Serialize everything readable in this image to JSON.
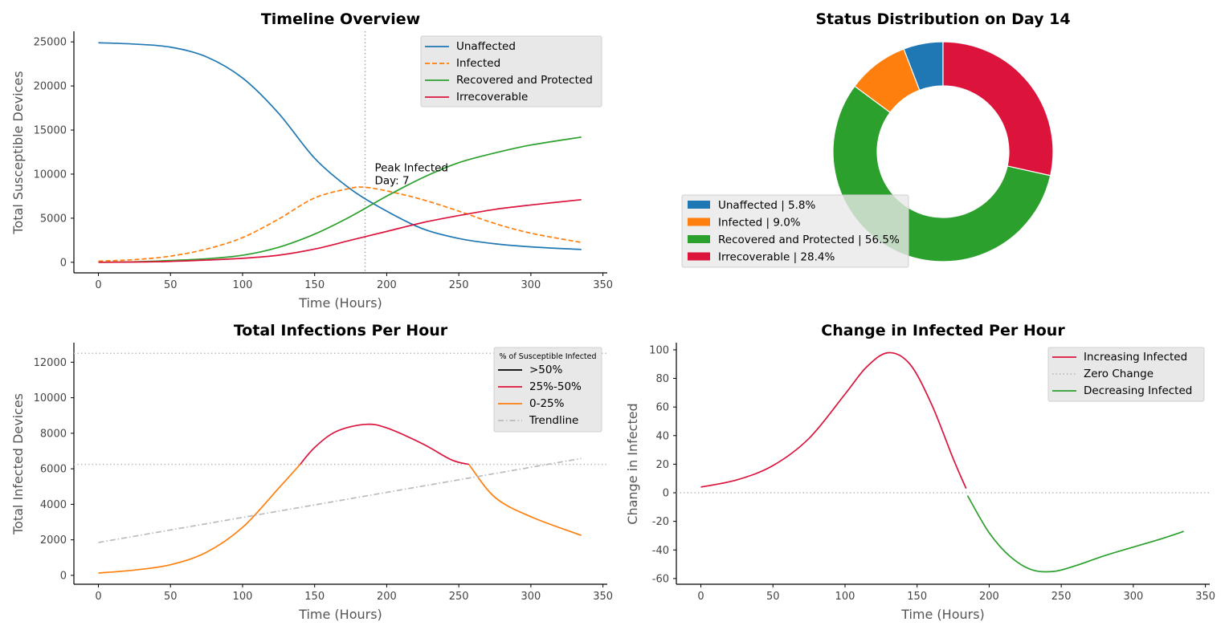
{
  "chart_data": [
    {
      "id": "timeline",
      "type": "line",
      "title": "Timeline Overview",
      "xlabel": "Time (Hours)",
      "ylabel": "Total Susceptible Devices",
      "xlim": [
        -17,
        353
      ],
      "ylim": [
        -1200,
        26200
      ],
      "xticks": [
        0,
        50,
        100,
        150,
        200,
        250,
        300,
        350
      ],
      "yticks": [
        0,
        5000,
        10000,
        15000,
        20000,
        25000
      ],
      "legend_position": "upper-right",
      "vline": {
        "x": 185,
        "style": "dotted",
        "color": "#aaaaaa"
      },
      "annotation": {
        "lines": [
          "Peak Infected",
          "Day: 7"
        ],
        "x": 190,
        "y": 10300
      },
      "series": [
        {
          "name": "Unaffected",
          "color": "#1f77b4",
          "style": "solid",
          "x": [
            0,
            25,
            50,
            75,
            100,
            125,
            150,
            175,
            200,
            225,
            250,
            275,
            300,
            335
          ],
          "y": [
            24900,
            24750,
            24400,
            23300,
            20900,
            16900,
            11800,
            8300,
            5800,
            3800,
            2700,
            2100,
            1750,
            1450
          ]
        },
        {
          "name": "Infected",
          "color": "#ff7f0e",
          "style": "dashed",
          "x": [
            0,
            25,
            50,
            75,
            100,
            125,
            150,
            175,
            185,
            200,
            225,
            250,
            275,
            300,
            335
          ],
          "y": [
            130,
            300,
            700,
            1500,
            2800,
            4900,
            7300,
            8400,
            8500,
            8100,
            7100,
            5800,
            4400,
            3300,
            2250
          ]
        },
        {
          "name": "Recovered and Protected",
          "color": "#2ca02c",
          "style": "solid",
          "x": [
            0,
            25,
            50,
            75,
            100,
            125,
            150,
            175,
            200,
            225,
            250,
            275,
            300,
            335
          ],
          "y": [
            0,
            50,
            200,
            400,
            800,
            1700,
            3200,
            5200,
            7500,
            9600,
            11300,
            12400,
            13300,
            14200
          ]
        },
        {
          "name": "Irrecoverable",
          "color": "#dc143c",
          "style": "solid",
          "x": [
            0,
            25,
            50,
            75,
            100,
            125,
            150,
            175,
            200,
            225,
            250,
            275,
            300,
            335
          ],
          "y": [
            0,
            30,
            100,
            250,
            450,
            800,
            1500,
            2500,
            3500,
            4500,
            5300,
            6000,
            6500,
            7100
          ]
        }
      ]
    },
    {
      "id": "status",
      "type": "pie",
      "title": "Status Distribution on Day 14",
      "legend_position": "lower-left",
      "slices": [
        {
          "label": "Unaffected",
          "value": 5.8,
          "legend": "Unaffected | 5.8%",
          "color": "#1f77b4"
        },
        {
          "label": "Infected",
          "value": 9.0,
          "legend": "Infected | 9.0%",
          "color": "#ff7f0e"
        },
        {
          "label": "Recovered and Protected",
          "value": 56.5,
          "legend": "Recovered and Protected | 56.5%",
          "color": "#2ca02c"
        },
        {
          "label": "Irrecoverable",
          "value": 28.4,
          "legend": "Irrecoverable | 28.4%",
          "color": "#dc143c"
        }
      ]
    },
    {
      "id": "infections",
      "type": "line",
      "title": "Total Infections Per Hour",
      "xlabel": "Time (Hours)",
      "ylabel": "Total Infected Devices",
      "xlim": [
        -17,
        353
      ],
      "ylim": [
        -500,
        13100
      ],
      "xticks": [
        0,
        50,
        100,
        150,
        200,
        250,
        300,
        350
      ],
      "yticks": [
        0,
        2000,
        4000,
        6000,
        8000,
        10000,
        12000
      ],
      "legend_title": "% of Susceptible Infected",
      "legend_position": "upper-right",
      "hlines": [
        {
          "y": 12500,
          "color": "#bbbbbb"
        },
        {
          "y": 6250,
          "color": "#bbbbbb"
        }
      ],
      "legend": [
        {
          "name": ">50%",
          "color": "#000000",
          "style": "solid"
        },
        {
          "name": "25%-50%",
          "color": "#dc143c",
          "style": "solid"
        },
        {
          "name": "0-25%",
          "color": "#ff7f0e",
          "style": "solid"
        },
        {
          "name": "Trendline",
          "color": "#bbbbbb",
          "style": "dashdot"
        }
      ],
      "series": [
        {
          "name": "0-25%",
          "color": "#ff7f0e",
          "style": "solid",
          "x": [
            0,
            25,
            50,
            75,
            100,
            125,
            140
          ],
          "y": [
            130,
            300,
            600,
            1300,
            2700,
            4900,
            6250
          ]
        },
        {
          "name": "25%-50%",
          "color": "#dc143c",
          "style": "solid",
          "x": [
            140,
            150,
            165,
            185,
            200,
            225,
            245,
            257
          ],
          "y": [
            6250,
            7200,
            8100,
            8500,
            8300,
            7400,
            6500,
            6250
          ]
        },
        {
          "name": "0-25%",
          "color": "#ff7f0e",
          "style": "solid",
          "x": [
            257,
            275,
            300,
            335
          ],
          "y": [
            6250,
            4400,
            3300,
            2250
          ]
        },
        {
          "name": "Trendline",
          "color": "#bbbbbb",
          "style": "dashdot",
          "x": [
            0,
            335
          ],
          "y": [
            1850,
            6580
          ]
        }
      ]
    },
    {
      "id": "change",
      "type": "line",
      "title": "Change in Infected Per Hour",
      "xlabel": "Time (Hours)",
      "ylabel": "Change in Infected",
      "xlim": [
        -17,
        353
      ],
      "ylim": [
        -64,
        105
      ],
      "xticks": [
        0,
        50,
        100,
        150,
        200,
        250,
        300,
        350
      ],
      "yticks": [
        -60,
        -40,
        -20,
        0,
        20,
        40,
        60,
        80,
        100
      ],
      "legend_position": "upper-right",
      "legend": [
        {
          "name": "Increasing Infected",
          "color": "#dc143c",
          "style": "solid"
        },
        {
          "name": "Zero Change",
          "color": "#bbbbbb",
          "style": "dotted"
        },
        {
          "name": "Decreasing  Infected",
          "color": "#2ca02c",
          "style": "solid"
        }
      ],
      "hlines": [
        {
          "y": 0,
          "color": "#bbbbbb"
        }
      ],
      "series": [
        {
          "name": "Increasing Infected",
          "color": "#dc143c",
          "style": "solid",
          "x": [
            0,
            25,
            50,
            75,
            100,
            115,
            130,
            145,
            160,
            175,
            184
          ],
          "y": [
            4,
            9,
            19,
            38,
            69,
            88,
            98,
            90,
            62,
            24,
            3
          ]
        },
        {
          "name": "Decreasing  Infected",
          "color": "#2ca02c",
          "style": "solid",
          "x": [
            185,
            200,
            215,
            230,
            245,
            260,
            280,
            300,
            320,
            335
          ],
          "y": [
            -2,
            -28,
            -45,
            -54,
            -55,
            -51,
            -44,
            -38,
            -32,
            -27
          ]
        }
      ]
    }
  ]
}
